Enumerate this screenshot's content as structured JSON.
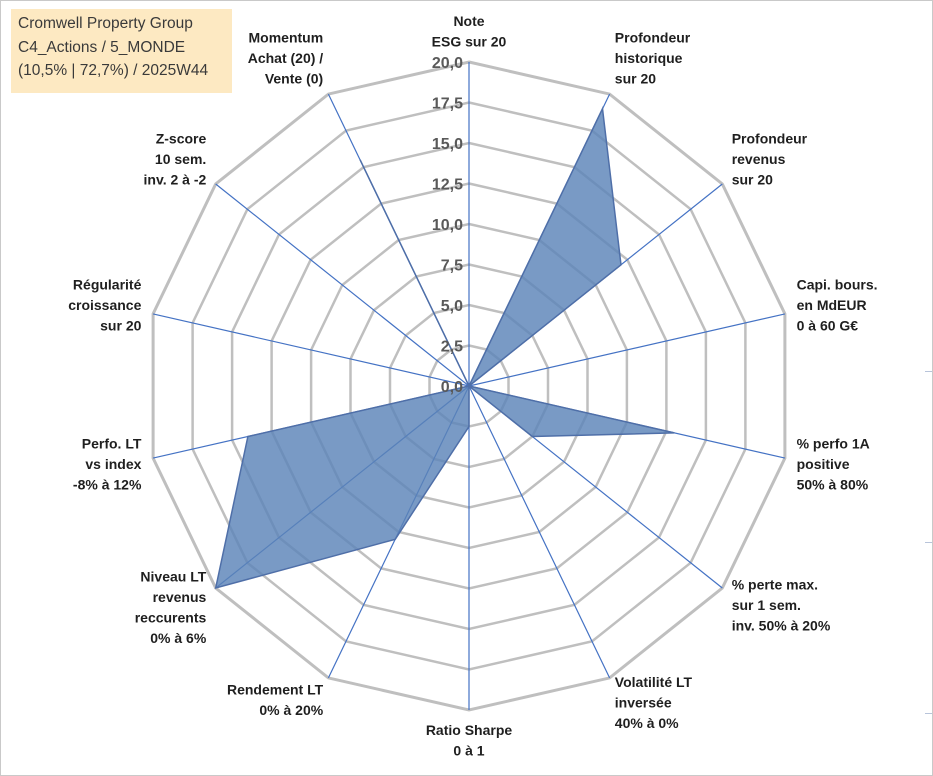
{
  "header": {
    "line1": "Cromwell Property Group",
    "line2": "C4_Actions / 5_MONDE",
    "line3": "(10,5% | 72,7%) / 2025W44"
  },
  "colors": {
    "grid": "#bfbfbf",
    "spoke": "#4472c4",
    "fill": "#5b84b8",
    "fill_stroke": "#4f6fa8",
    "header_bg": "#fde9c2"
  },
  "chart_data": {
    "type": "radar",
    "title": "Cromwell Property Group",
    "rmin": 0,
    "rmax": 20,
    "tick_step": 2.5,
    "tick_labels": [
      "0,0",
      "2,5",
      "5,0",
      "7,5",
      "10,0",
      "12,5",
      "15,0",
      "17,5",
      "20,0"
    ],
    "grid": true,
    "axes": [
      {
        "lines": [
          "Note",
          "ESG sur 20"
        ],
        "value": 0
      },
      {
        "lines": [
          "Profondeur",
          "historique",
          "sur 20"
        ],
        "value": 19.0
      },
      {
        "lines": [
          "Profondeur",
          "revenus",
          "sur 20"
        ],
        "value": 12.0
      },
      {
        "lines": [
          "Capi. bours.",
          "en MdEUR",
          "0 à 60 G€"
        ],
        "value": 0
      },
      {
        "lines": [
          "% perfo 1A",
          "positive",
          "50% à 80%"
        ],
        "value": 13.0
      },
      {
        "lines": [
          "% perte max.",
          "sur 1 sem.",
          "inv. 50% à 20%"
        ],
        "value": 5.0
      },
      {
        "lines": [
          "Volatilité LT",
          "inversée",
          "40% à 0%"
        ],
        "value": 0
      },
      {
        "lines": [
          "Ratio Sharpe",
          "0 à 1"
        ],
        "value": 2.5
      },
      {
        "lines": [
          "Rendement LT",
          "0% à 20%"
        ],
        "value": 10.5
      },
      {
        "lines": [
          "Niveau LT",
          "revenus",
          "reccurents",
          "0% à 6%"
        ],
        "value": 20.0
      },
      {
        "lines": [
          "Perfo. LT",
          "vs index",
          "-8% à 12%"
        ],
        "value": 14.0
      },
      {
        "lines": [
          "Régularité",
          "croissance",
          "sur 20"
        ],
        "value": 0
      },
      {
        "lines": [
          "Z-score",
          "10 sem.",
          "inv. 2 à -2"
        ],
        "value": 0
      },
      {
        "lines": [
          "Momentum",
          "Achat (20) /",
          "Vente (0)"
        ],
        "value": 15.5
      }
    ]
  }
}
